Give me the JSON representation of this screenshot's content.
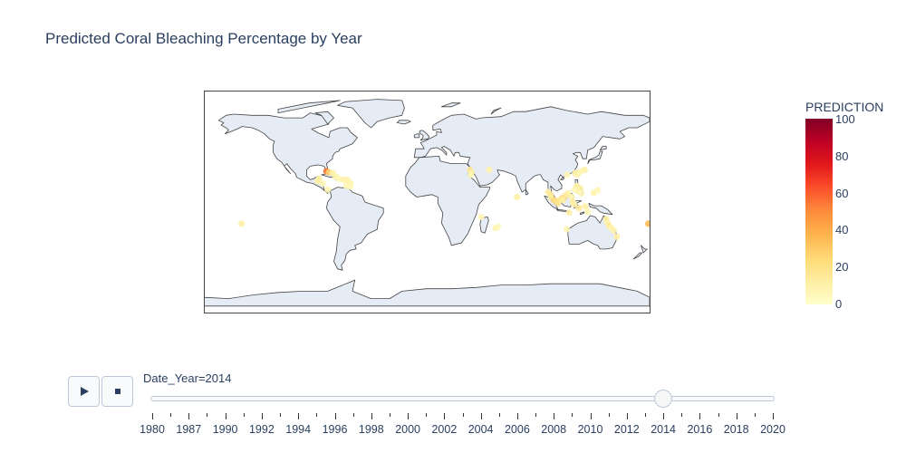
{
  "chart_data": {
    "type": "scatter_geo",
    "title": "Predicted Coral Bleaching Percentage by Year",
    "colorbar": {
      "title": "PREDICTION",
      "range": [
        0,
        100
      ],
      "ticks": [
        "100",
        "80",
        "60",
        "40",
        "20",
        "0"
      ],
      "colorscale": [
        "#ffffcc",
        "#ffeda0",
        "#fed976",
        "#feb24c",
        "#fd8d3c",
        "#fc4e2a",
        "#e31a1c",
        "#bd0026",
        "#800026"
      ]
    },
    "colors": {
      "land": "#e5ecf6",
      "coastline": "#444444",
      "frame": "#444444"
    },
    "frame": "Date_Year=2014",
    "points": [
      {
        "lon": -81,
        "lat": 24.8,
        "value": 55
      },
      {
        "lon": -79,
        "lat": 24,
        "value": 28
      },
      {
        "lon": -76,
        "lat": 23.5,
        "value": 10
      },
      {
        "lon": -74,
        "lat": 21,
        "value": 8
      },
      {
        "lon": -72,
        "lat": 19.5,
        "value": 6
      },
      {
        "lon": -70,
        "lat": 18.5,
        "value": 5
      },
      {
        "lon": -67,
        "lat": 18,
        "value": 8
      },
      {
        "lon": -64,
        "lat": 17.8,
        "value": 10
      },
      {
        "lon": -61.5,
        "lat": 15,
        "value": 8
      },
      {
        "lon": -62,
        "lat": 12.5,
        "value": 7
      },
      {
        "lon": -65,
        "lat": 13,
        "value": 6
      },
      {
        "lon": -87,
        "lat": 19,
        "value": 9
      },
      {
        "lon": -88,
        "lat": 17,
        "value": 12
      },
      {
        "lon": -84,
        "lat": 15,
        "value": 6
      },
      {
        "lon": -80,
        "lat": 10,
        "value": 7
      },
      {
        "lon": -149.5,
        "lat": -17.5,
        "value": 10
      },
      {
        "lon": 35,
        "lat": 26,
        "value": 15
      },
      {
        "lon": 36,
        "lat": 24,
        "value": 12
      },
      {
        "lon": 35.5,
        "lat": 22,
        "value": 6
      },
      {
        "lon": 50.5,
        "lat": 26,
        "value": 8
      },
      {
        "lon": 73,
        "lat": 4,
        "value": 10
      },
      {
        "lon": 44,
        "lat": -12,
        "value": 6
      },
      {
        "lon": 55.5,
        "lat": -21,
        "value": 8
      },
      {
        "lon": 57.5,
        "lat": -20,
        "value": 5
      },
      {
        "lon": 98,
        "lat": 8,
        "value": 10
      },
      {
        "lon": 100,
        "lat": 6,
        "value": 15
      },
      {
        "lon": 100.5,
        "lat": 3.5,
        "value": 12
      },
      {
        "lon": 103,
        "lat": 1.3,
        "value": 25
      },
      {
        "lon": 104.5,
        "lat": 1,
        "value": 20
      },
      {
        "lon": 106,
        "lat": -1,
        "value": 18
      },
      {
        "lon": 109,
        "lat": 3,
        "value": 22
      },
      {
        "lon": 110,
        "lat": 1.5,
        "value": 10
      },
      {
        "lon": 112,
        "lat": 5,
        "value": 16
      },
      {
        "lon": 114,
        "lat": 7,
        "value": 12
      },
      {
        "lon": 115,
        "lat": -8.5,
        "value": 10
      },
      {
        "lon": 117,
        "lat": 4,
        "value": 8
      },
      {
        "lon": 118,
        "lat": 0,
        "value": 12
      },
      {
        "lon": 119.5,
        "lat": 10,
        "value": 7
      },
      {
        "lon": 121,
        "lat": 13,
        "value": 9
      },
      {
        "lon": 122,
        "lat": 9,
        "value": 6
      },
      {
        "lon": 124,
        "lat": 11,
        "value": 11
      },
      {
        "lon": 125,
        "lat": 7,
        "value": 6
      },
      {
        "lon": 119,
        "lat": -2,
        "value": 10
      },
      {
        "lon": 123,
        "lat": -5,
        "value": 14
      },
      {
        "lon": 128,
        "lat": -3.5,
        "value": 9
      },
      {
        "lon": 130,
        "lat": -8,
        "value": 6
      },
      {
        "lon": 120,
        "lat": 23.5,
        "value": 12
      },
      {
        "lon": 121.5,
        "lat": 22,
        "value": 8
      },
      {
        "lon": 127.5,
        "lat": 26,
        "value": 10
      },
      {
        "lon": 124,
        "lat": 24.5,
        "value": 7
      },
      {
        "lon": 113.5,
        "lat": 22,
        "value": 6
      },
      {
        "lon": 135,
        "lat": 7.5,
        "value": 9
      },
      {
        "lon": 138,
        "lat": 9.5,
        "value": 6
      },
      {
        "lon": 145,
        "lat": -14,
        "value": 12
      },
      {
        "lon": 146,
        "lat": -17,
        "value": 8
      },
      {
        "lon": 147.5,
        "lat": -19.5,
        "value": 15
      },
      {
        "lon": 149,
        "lat": -21,
        "value": 7
      },
      {
        "lon": 151,
        "lat": -23,
        "value": 9
      },
      {
        "lon": 153.5,
        "lat": -28,
        "value": 10
      },
      {
        "lon": 113,
        "lat": -22,
        "value": 6
      },
      {
        "lon": 179,
        "lat": -17.5,
        "value": 35
      }
    ]
  },
  "controls": {
    "play_icon": "play-icon",
    "stop_icon": "stop-icon",
    "current_year": 2014,
    "slider_label": "Date_Year=2014",
    "years": [
      "1980",
      "1987",
      "1990",
      "1992",
      "1994",
      "1996",
      "1998",
      "2000",
      "2002",
      "2004",
      "2006",
      "2008",
      "2010",
      "2012",
      "2014",
      "2016",
      "2018",
      "2020"
    ]
  }
}
